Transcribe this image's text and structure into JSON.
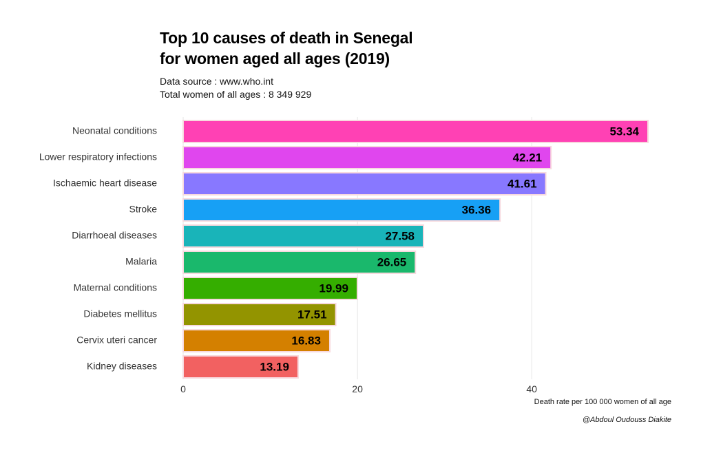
{
  "chart_data": {
    "type": "bar",
    "orientation": "horizontal",
    "title": [
      "Top 10 causes of death in Senegal",
      "for women aged all ages (2019)"
    ],
    "subtitle": [
      "Data source : www.who.int",
      "Total women of all ages : 8 349 929"
    ],
    "xlabel": "Death rate per 100 000 women of all age",
    "ylabel": "",
    "caption": "@Abdoul Oudouss Diakite",
    "xlim": [
      0,
      53.34
    ],
    "xticks": [
      0,
      20,
      40
    ],
    "xtick_labels": [
      "0",
      "20",
      "40"
    ],
    "grid": "vertical major gridlines",
    "legend": "none",
    "categories": [
      "Neonatal conditions",
      "Lower respiratory infections",
      "Ischaemic heart disease",
      "Stroke",
      "Diarrhoeal diseases",
      "Malaria",
      "Maternal conditions",
      "Diabetes mellitus",
      "Cervix uteri cancer",
      "Kidney diseases"
    ],
    "values": [
      53.34,
      42.21,
      41.61,
      36.36,
      27.58,
      26.65,
      19.99,
      17.51,
      16.83,
      13.19
    ],
    "value_labels": [
      "53.34",
      "42.21",
      "41.61",
      "36.36",
      "27.58",
      "26.65",
      "19.99",
      "17.51",
      "16.83",
      "13.19"
    ],
    "colors": [
      "#FF41B4",
      "#E046EE",
      "#8878FF",
      "#17A0F5",
      "#19B4B9",
      "#1AB86C",
      "#35AE00",
      "#939400",
      "#D48000",
      "#F26161"
    ],
    "bar_border_color": "#F7D9DE"
  }
}
